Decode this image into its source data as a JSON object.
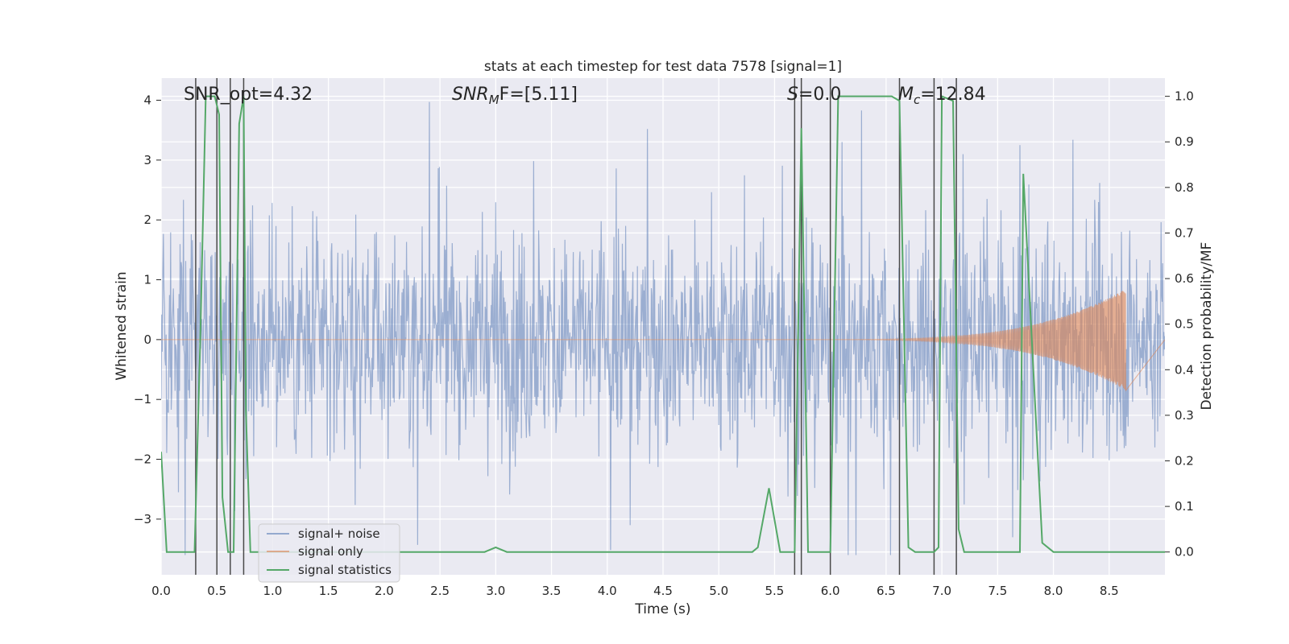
{
  "chart_data": {
    "type": "line",
    "title": "stats at each timestep for test data 7578 [signal=1]",
    "xlabel": "Time (s)",
    "ylabel_left": "Whitened strain",
    "ylabel_right": "Detection probability/MF",
    "xlim": [
      0.0,
      9.0
    ],
    "ylim_left": [
      -3.93,
      4.37
    ],
    "ylim_right": [
      -0.05,
      1.04
    ],
    "x_ticks": [
      "0.0",
      "0.5",
      "1.0",
      "1.5",
      "2.0",
      "2.5",
      "3.0",
      "3.5",
      "4.0",
      "4.5",
      "5.0",
      "5.5",
      "6.0",
      "6.5",
      "7.0",
      "7.5",
      "8.0",
      "8.5"
    ],
    "x_tick_values": [
      0.0,
      0.5,
      1.0,
      1.5,
      2.0,
      2.5,
      3.0,
      3.5,
      4.0,
      4.5,
      5.0,
      5.5,
      6.0,
      6.5,
      7.0,
      7.5,
      8.0,
      8.5
    ],
    "y_left_ticks": [
      "−3",
      "−2",
      "−1",
      "0",
      "1",
      "2",
      "3",
      "4"
    ],
    "y_left_tick_values": [
      -3,
      -2,
      -1,
      0,
      1,
      2,
      3,
      4
    ],
    "y_right_ticks": [
      "0.0",
      "0.1",
      "0.2",
      "0.3",
      "0.4",
      "0.5",
      "0.6",
      "0.7",
      "0.8",
      "0.9",
      "1.0"
    ],
    "y_right_tick_values": [
      0.0,
      0.1,
      0.2,
      0.3,
      0.4,
      0.5,
      0.6,
      0.7,
      0.8,
      0.9,
      1.0
    ],
    "grid": true,
    "legend_location": "lower left",
    "annotations": {
      "snr_opt": "SNR_opt=4.32",
      "snr_mf_label": "SNR",
      "snr_mf_sub": "M",
      "snr_mf_rest": "F=[5.11]",
      "s_label": "S",
      "s_rest": "=0.0",
      "mc_label": "M",
      "mc_sub": "c",
      "mc_rest": "=12.84"
    },
    "series": [
      {
        "name": "signal+ noise",
        "color": "#4c72b0",
        "axis": "left",
        "description_values": {
          "noise_sigma": 0.95,
          "typical_peak": 2.3,
          "max_peak": 4.0,
          "min_peak": -3.6
        }
      },
      {
        "name": "signal only",
        "color": "#dd8452",
        "axis": "left",
        "chirp": {
          "start": 5.5,
          "end": 8.65,
          "peak_amplitude": 0.85
        }
      },
      {
        "name": "signal statistics",
        "color": "#55a868",
        "axis": "right",
        "x": [
          0.0,
          0.05,
          0.2,
          0.3,
          0.35,
          0.4,
          0.48,
          0.52,
          0.55,
          0.6,
          0.65,
          0.7,
          0.74,
          0.76,
          0.8,
          0.85,
          1.0,
          2.9,
          3.0,
          3.1,
          5.3,
          5.35,
          5.45,
          5.55,
          5.62,
          5.68,
          5.74,
          5.8,
          5.87,
          5.95,
          6.0,
          6.07,
          6.1,
          6.55,
          6.62,
          6.7,
          6.76,
          6.83,
          6.93,
          6.97,
          7.0,
          7.1,
          7.15,
          7.2,
          7.25,
          7.7,
          7.73,
          7.9,
          8.0,
          9.0
        ],
        "values": [
          0.22,
          0.0,
          0.0,
          0.0,
          0.46,
          1.0,
          1.0,
          0.96,
          0.12,
          0.0,
          0.0,
          0.94,
          1.0,
          0.31,
          0.0,
          0.0,
          0.0,
          0.0,
          0.01,
          0.0,
          0.0,
          0.01,
          0.14,
          0.0,
          0.0,
          0.0,
          0.93,
          0.0,
          0.0,
          0.0,
          0.0,
          1.0,
          1.0,
          1.0,
          0.99,
          0.01,
          0.0,
          0.0,
          0.0,
          0.01,
          1.0,
          0.99,
          0.05,
          0.0,
          0.0,
          0.0,
          0.83,
          0.02,
          0.0,
          0.0
        ]
      }
    ],
    "vertical_lines": {
      "color": "#4a4a4a",
      "x": [
        0.31,
        0.5,
        0.62,
        0.74,
        5.68,
        5.74,
        6.0,
        6.62,
        6.93,
        7.13
      ]
    }
  }
}
